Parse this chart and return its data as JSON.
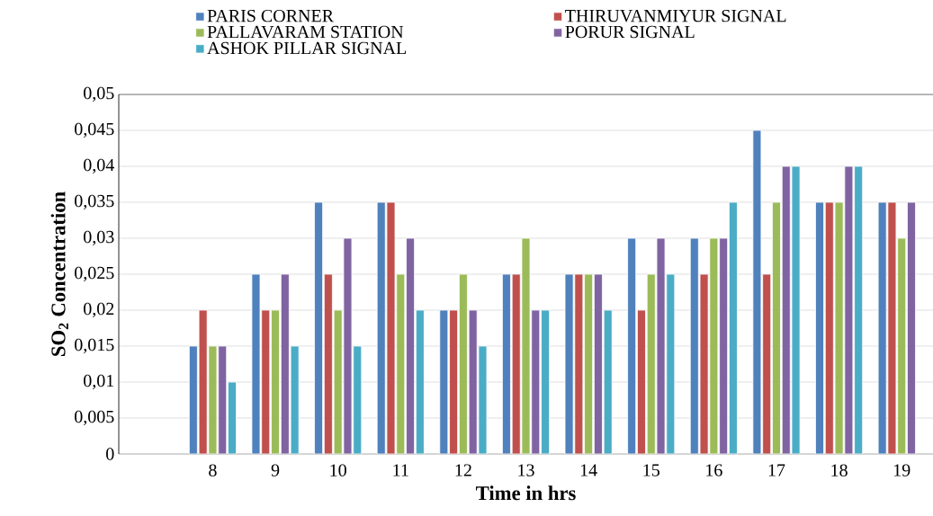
{
  "chart_data": {
    "type": "bar",
    "xlabel": "Time  in hrs",
    "ylabel": "SO$_{2}$ Concentration",
    "categories": [
      null,
      "8",
      "9",
      "10",
      "11",
      "12",
      "13",
      "14",
      "15",
      "16",
      "17",
      "18",
      "19"
    ],
    "series": [
      {
        "name": "PARIS CORNER",
        "color": "#4f81bd",
        "values": [
          null,
          0.015,
          0.025,
          0.035,
          0.035,
          0.02,
          0.025,
          0.025,
          0.03,
          0.03,
          0.045,
          0.035,
          0.035
        ]
      },
      {
        "name": "THIRUVANMIYUR SIGNAL",
        "color": "#c0504d",
        "values": [
          null,
          0.02,
          0.02,
          0.025,
          0.035,
          0.02,
          0.025,
          0.025,
          0.02,
          0.025,
          0.025,
          0.035,
          0.035
        ]
      },
      {
        "name": "PALLAVARAM STATION",
        "color": "#9bbb59",
        "values": [
          null,
          0.015,
          0.02,
          0.02,
          0.025,
          0.025,
          0.03,
          0.025,
          0.025,
          0.03,
          0.035,
          0.035,
          0.03
        ]
      },
      {
        "name": "PORUR SIGNAL",
        "color": "#8064a2",
        "values": [
          null,
          0.015,
          0.025,
          0.03,
          0.03,
          0.02,
          0.02,
          0.025,
          0.03,
          0.03,
          0.04,
          0.04,
          0.035
        ]
      },
      {
        "name": "ASHOK PILLAR SIGNAL",
        "color": "#4bacc6",
        "values": [
          null,
          0.01,
          0.015,
          0.015,
          0.02,
          0.015,
          0.02,
          0.02,
          0.025,
          0.035,
          0.04,
          0.04,
          null
        ]
      }
    ],
    "ylim": [
      0,
      0.05
    ],
    "yticks": [
      {
        "value": 0,
        "label": "0"
      },
      {
        "value": 0.005,
        "label": "0,005"
      },
      {
        "value": 0.01,
        "label": "0,01"
      },
      {
        "value": 0.015,
        "label": "0,015"
      },
      {
        "value": 0.02,
        "label": "0,02"
      },
      {
        "value": 0.025,
        "label": "0,025"
      },
      {
        "value": 0.03,
        "label": "0,03"
      },
      {
        "value": 0.035,
        "label": "0,035"
      },
      {
        "value": 0.04,
        "label": "0,04"
      },
      {
        "value": 0.045,
        "label": "0,045"
      },
      {
        "value": 0.05,
        "label": "0,05"
      }
    ],
    "grid": "y",
    "legend": "top"
  }
}
